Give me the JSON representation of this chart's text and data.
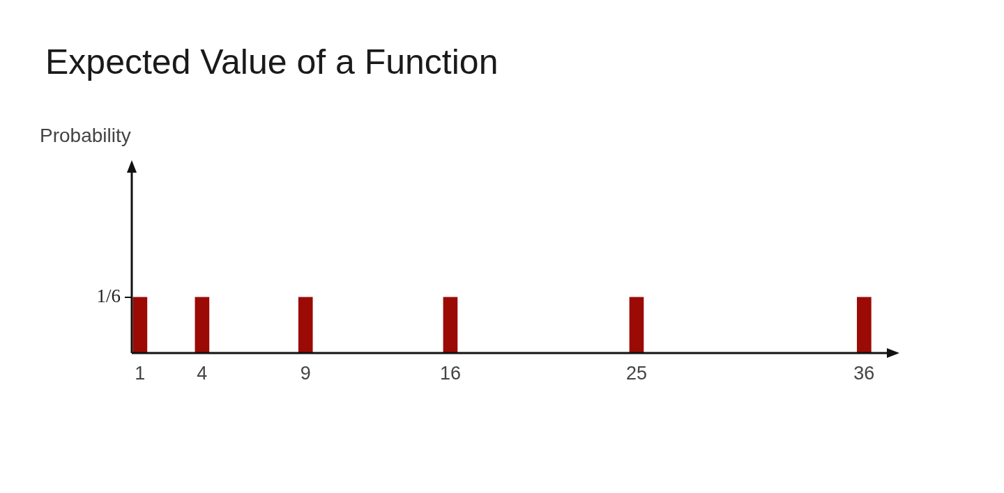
{
  "chart_data": {
    "type": "bar",
    "title": "Expected Value of a Function",
    "ylabel": "Probability",
    "x": [
      1,
      4,
      9,
      16,
      25,
      36
    ],
    "values": [
      0.167,
      0.167,
      0.167,
      0.167,
      0.167,
      0.167
    ],
    "color": "#9b0a05",
    "xlim": [
      0.6,
      37.1
    ],
    "xticks": [
      1,
      4,
      9,
      16,
      25,
      36
    ],
    "ylim": [
      0,
      0.54
    ],
    "yticks": [
      {
        "value": 0.167,
        "label": "1/6"
      }
    ],
    "grid": false,
    "legend": false
  }
}
